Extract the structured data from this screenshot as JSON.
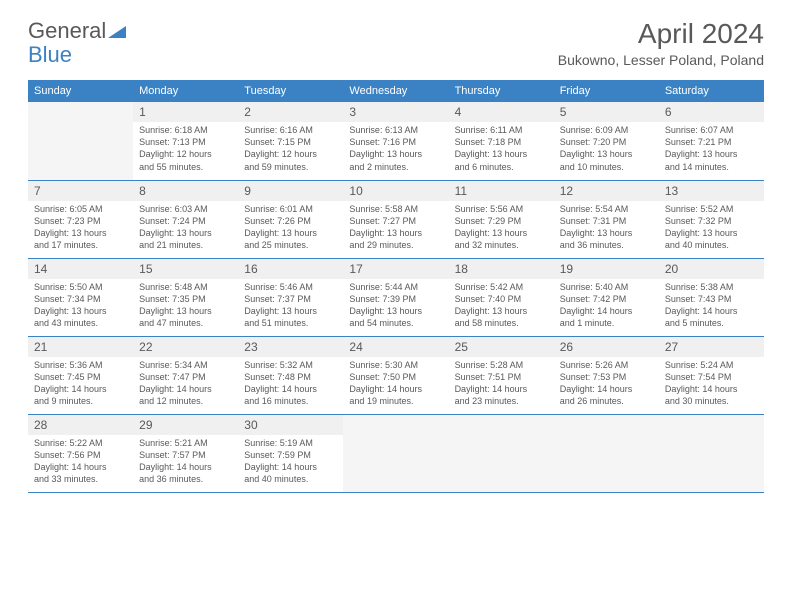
{
  "logo": {
    "text1": "General",
    "text2": "Blue"
  },
  "title": {
    "month": "April 2024",
    "location": "Bukowno, Lesser Poland, Poland"
  },
  "colors": {
    "accent": "#3b82c4",
    "text": "#595959",
    "empty_bg": "#f5f5f5",
    "daynum_bg": "#f0f0f0"
  },
  "weekdays": [
    "Sunday",
    "Monday",
    "Tuesday",
    "Wednesday",
    "Thursday",
    "Friday",
    "Saturday"
  ],
  "weeks": [
    [
      null,
      {
        "n": "1",
        "sr": "Sunrise: 6:18 AM",
        "ss": "Sunset: 7:13 PM",
        "d1": "Daylight: 12 hours",
        "d2": "and 55 minutes."
      },
      {
        "n": "2",
        "sr": "Sunrise: 6:16 AM",
        "ss": "Sunset: 7:15 PM",
        "d1": "Daylight: 12 hours",
        "d2": "and 59 minutes."
      },
      {
        "n": "3",
        "sr": "Sunrise: 6:13 AM",
        "ss": "Sunset: 7:16 PM",
        "d1": "Daylight: 13 hours",
        "d2": "and 2 minutes."
      },
      {
        "n": "4",
        "sr": "Sunrise: 6:11 AM",
        "ss": "Sunset: 7:18 PM",
        "d1": "Daylight: 13 hours",
        "d2": "and 6 minutes."
      },
      {
        "n": "5",
        "sr": "Sunrise: 6:09 AM",
        "ss": "Sunset: 7:20 PM",
        "d1": "Daylight: 13 hours",
        "d2": "and 10 minutes."
      },
      {
        "n": "6",
        "sr": "Sunrise: 6:07 AM",
        "ss": "Sunset: 7:21 PM",
        "d1": "Daylight: 13 hours",
        "d2": "and 14 minutes."
      }
    ],
    [
      {
        "n": "7",
        "sr": "Sunrise: 6:05 AM",
        "ss": "Sunset: 7:23 PM",
        "d1": "Daylight: 13 hours",
        "d2": "and 17 minutes."
      },
      {
        "n": "8",
        "sr": "Sunrise: 6:03 AM",
        "ss": "Sunset: 7:24 PM",
        "d1": "Daylight: 13 hours",
        "d2": "and 21 minutes."
      },
      {
        "n": "9",
        "sr": "Sunrise: 6:01 AM",
        "ss": "Sunset: 7:26 PM",
        "d1": "Daylight: 13 hours",
        "d2": "and 25 minutes."
      },
      {
        "n": "10",
        "sr": "Sunrise: 5:58 AM",
        "ss": "Sunset: 7:27 PM",
        "d1": "Daylight: 13 hours",
        "d2": "and 29 minutes."
      },
      {
        "n": "11",
        "sr": "Sunrise: 5:56 AM",
        "ss": "Sunset: 7:29 PM",
        "d1": "Daylight: 13 hours",
        "d2": "and 32 minutes."
      },
      {
        "n": "12",
        "sr": "Sunrise: 5:54 AM",
        "ss": "Sunset: 7:31 PM",
        "d1": "Daylight: 13 hours",
        "d2": "and 36 minutes."
      },
      {
        "n": "13",
        "sr": "Sunrise: 5:52 AM",
        "ss": "Sunset: 7:32 PM",
        "d1": "Daylight: 13 hours",
        "d2": "and 40 minutes."
      }
    ],
    [
      {
        "n": "14",
        "sr": "Sunrise: 5:50 AM",
        "ss": "Sunset: 7:34 PM",
        "d1": "Daylight: 13 hours",
        "d2": "and 43 minutes."
      },
      {
        "n": "15",
        "sr": "Sunrise: 5:48 AM",
        "ss": "Sunset: 7:35 PM",
        "d1": "Daylight: 13 hours",
        "d2": "and 47 minutes."
      },
      {
        "n": "16",
        "sr": "Sunrise: 5:46 AM",
        "ss": "Sunset: 7:37 PM",
        "d1": "Daylight: 13 hours",
        "d2": "and 51 minutes."
      },
      {
        "n": "17",
        "sr": "Sunrise: 5:44 AM",
        "ss": "Sunset: 7:39 PM",
        "d1": "Daylight: 13 hours",
        "d2": "and 54 minutes."
      },
      {
        "n": "18",
        "sr": "Sunrise: 5:42 AM",
        "ss": "Sunset: 7:40 PM",
        "d1": "Daylight: 13 hours",
        "d2": "and 58 minutes."
      },
      {
        "n": "19",
        "sr": "Sunrise: 5:40 AM",
        "ss": "Sunset: 7:42 PM",
        "d1": "Daylight: 14 hours",
        "d2": "and 1 minute."
      },
      {
        "n": "20",
        "sr": "Sunrise: 5:38 AM",
        "ss": "Sunset: 7:43 PM",
        "d1": "Daylight: 14 hours",
        "d2": "and 5 minutes."
      }
    ],
    [
      {
        "n": "21",
        "sr": "Sunrise: 5:36 AM",
        "ss": "Sunset: 7:45 PM",
        "d1": "Daylight: 14 hours",
        "d2": "and 9 minutes."
      },
      {
        "n": "22",
        "sr": "Sunrise: 5:34 AM",
        "ss": "Sunset: 7:47 PM",
        "d1": "Daylight: 14 hours",
        "d2": "and 12 minutes."
      },
      {
        "n": "23",
        "sr": "Sunrise: 5:32 AM",
        "ss": "Sunset: 7:48 PM",
        "d1": "Daylight: 14 hours",
        "d2": "and 16 minutes."
      },
      {
        "n": "24",
        "sr": "Sunrise: 5:30 AM",
        "ss": "Sunset: 7:50 PM",
        "d1": "Daylight: 14 hours",
        "d2": "and 19 minutes."
      },
      {
        "n": "25",
        "sr": "Sunrise: 5:28 AM",
        "ss": "Sunset: 7:51 PM",
        "d1": "Daylight: 14 hours",
        "d2": "and 23 minutes."
      },
      {
        "n": "26",
        "sr": "Sunrise: 5:26 AM",
        "ss": "Sunset: 7:53 PM",
        "d1": "Daylight: 14 hours",
        "d2": "and 26 minutes."
      },
      {
        "n": "27",
        "sr": "Sunrise: 5:24 AM",
        "ss": "Sunset: 7:54 PM",
        "d1": "Daylight: 14 hours",
        "d2": "and 30 minutes."
      }
    ],
    [
      {
        "n": "28",
        "sr": "Sunrise: 5:22 AM",
        "ss": "Sunset: 7:56 PM",
        "d1": "Daylight: 14 hours",
        "d2": "and 33 minutes."
      },
      {
        "n": "29",
        "sr": "Sunrise: 5:21 AM",
        "ss": "Sunset: 7:57 PM",
        "d1": "Daylight: 14 hours",
        "d2": "and 36 minutes."
      },
      {
        "n": "30",
        "sr": "Sunrise: 5:19 AM",
        "ss": "Sunset: 7:59 PM",
        "d1": "Daylight: 14 hours",
        "d2": "and 40 minutes."
      },
      null,
      null,
      null,
      null
    ]
  ]
}
